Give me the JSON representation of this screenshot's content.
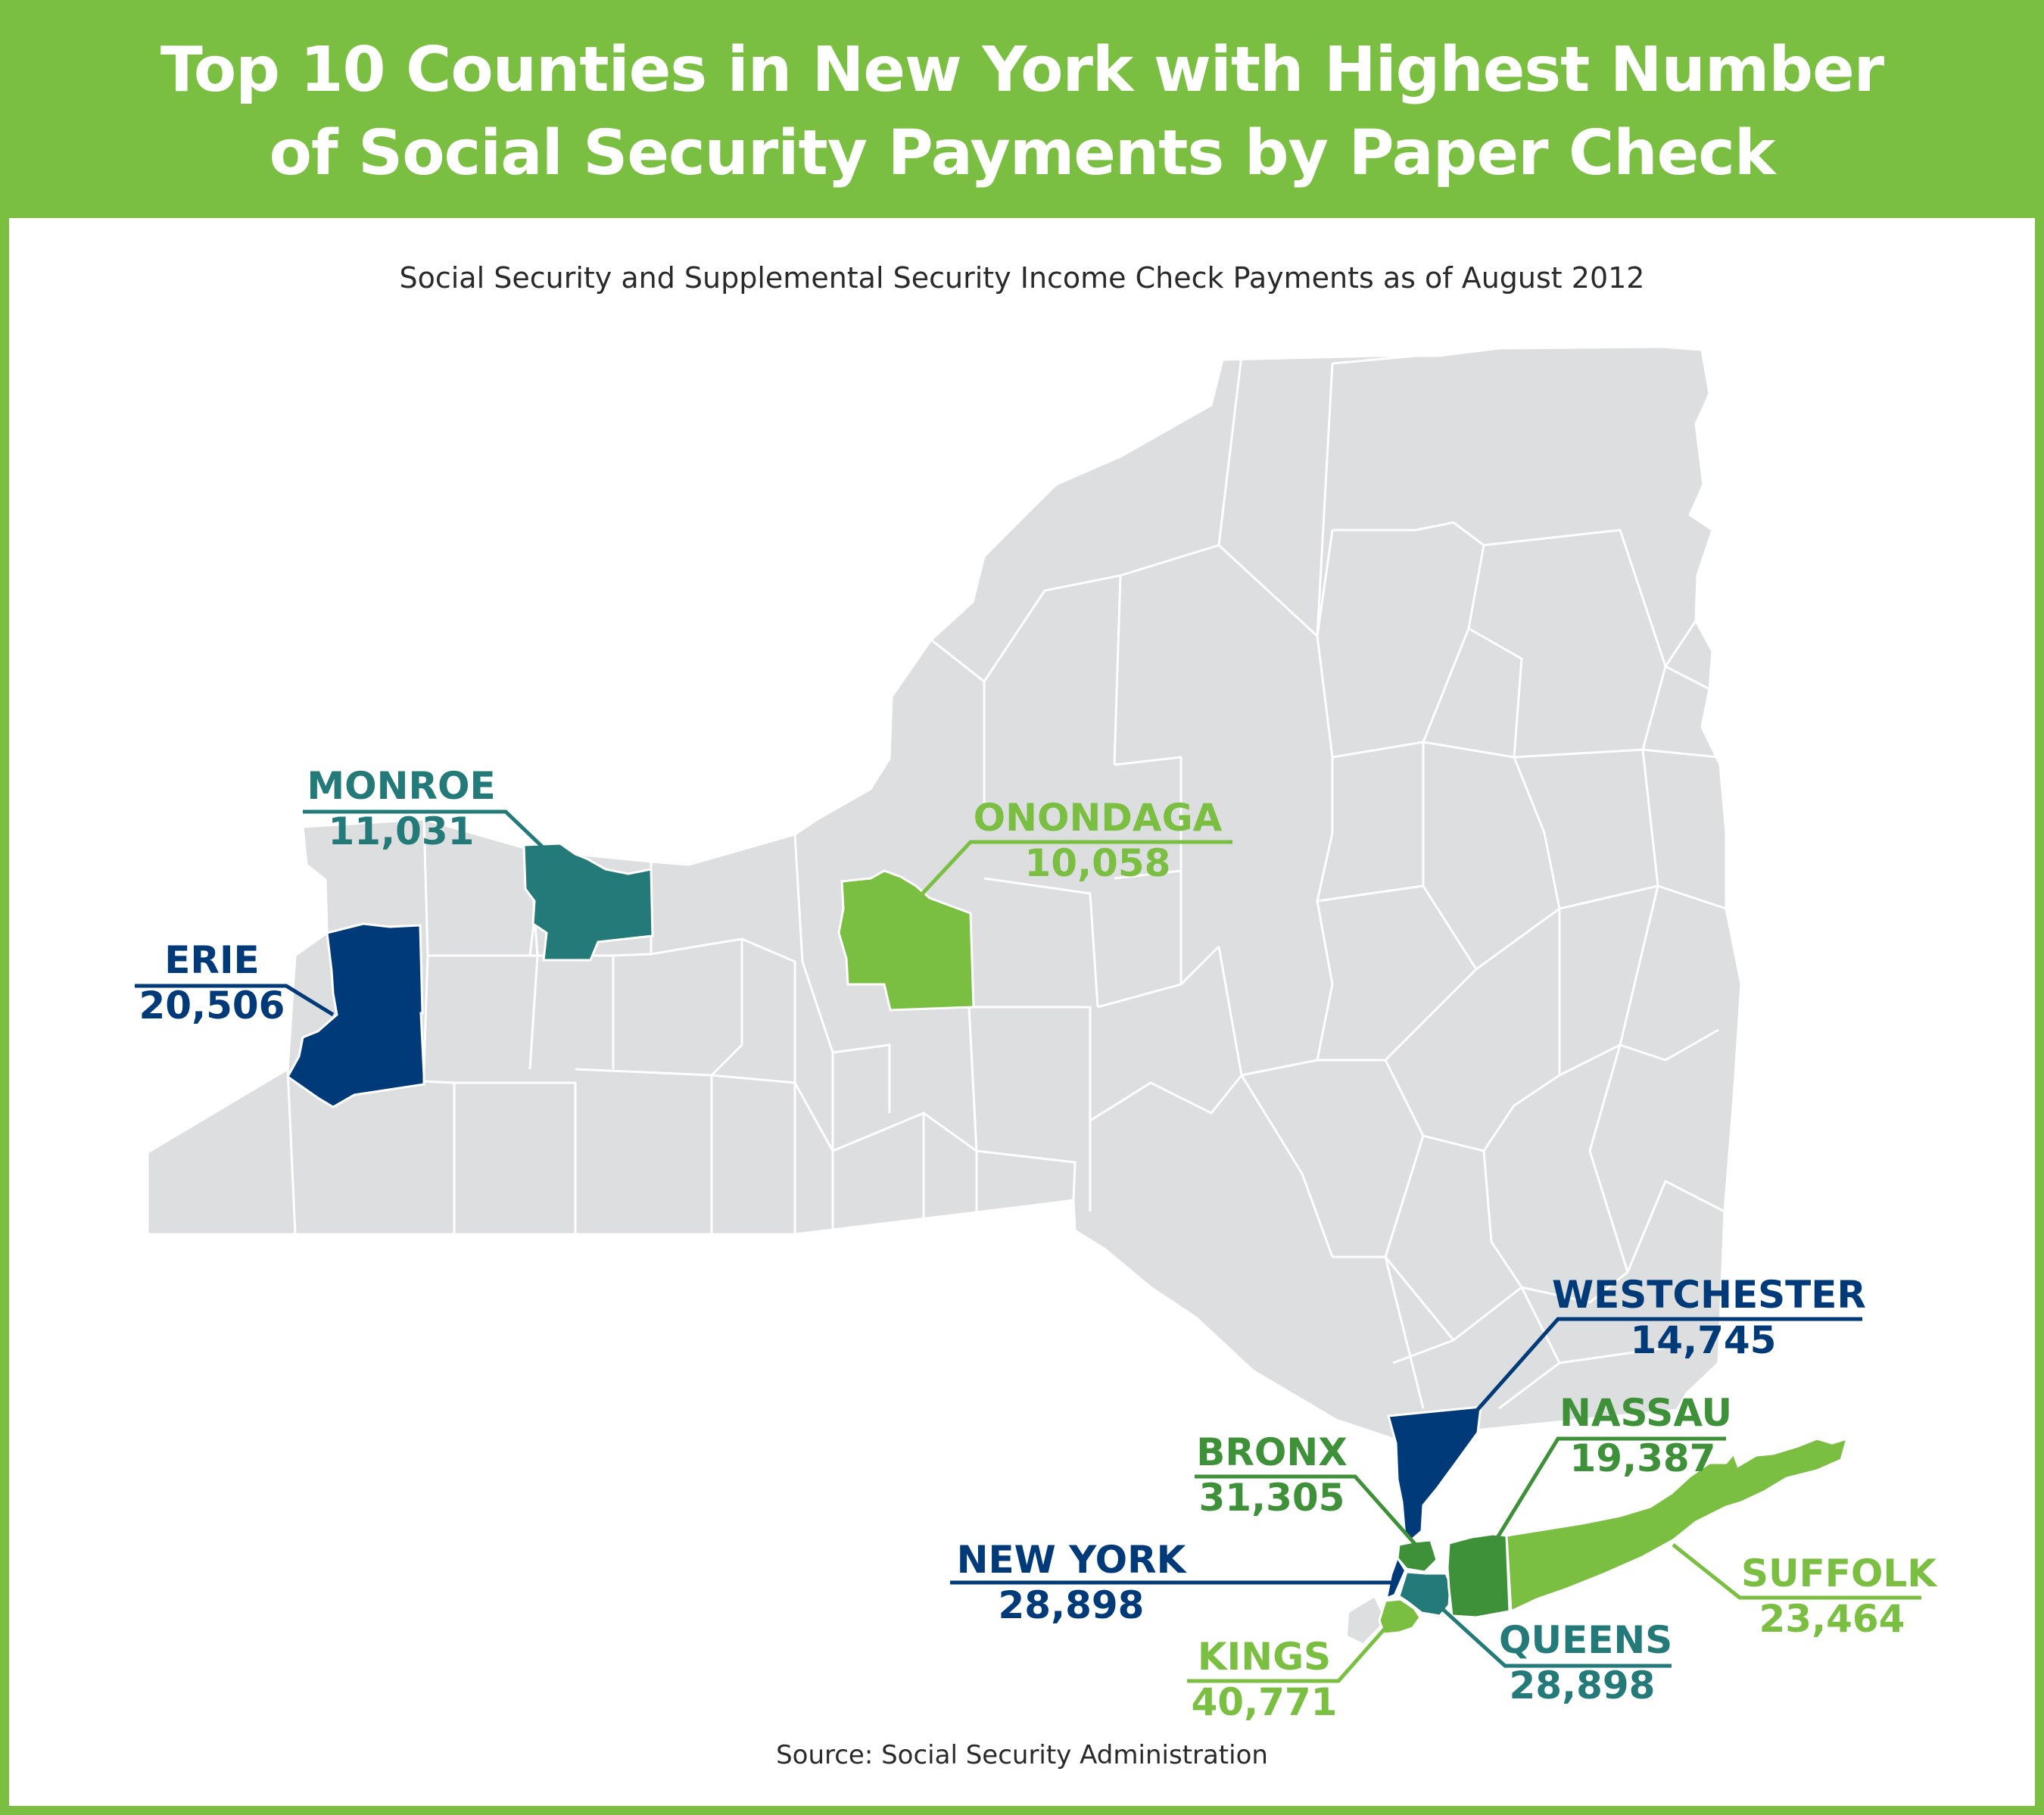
{
  "title": "Top 10 Counties in New York with Highest Number of Social Security Payments by Paper Check",
  "title_lines": [
    "Top 10 Counties in New York with Highest Number",
    "of Social Security Payments by Paper Check"
  ],
  "subtitle": "Social Security and Supplemental Security Income Check Payments as of August 2012",
  "source": "Source: Social Security Administration",
  "colors": {
    "frame": "#7bbf42",
    "state_fill": "#dcdedf",
    "county_border": "#ffffff",
    "navy": "#003a78",
    "teal": "#237a78",
    "light_green": "#7bbf42",
    "dark_green": "#3e9139"
  },
  "counties": [
    {
      "name": "KINGS",
      "value": "40,771",
      "color": "light_green"
    },
    {
      "name": "BRONX",
      "value": "31,305",
      "color": "dark_green"
    },
    {
      "name": "NEW YORK",
      "value": "28,898",
      "color": "navy"
    },
    {
      "name": "QUEENS",
      "value": "28,898",
      "color": "teal"
    },
    {
      "name": "SUFFOLK",
      "value": "23,464",
      "color": "light_green"
    },
    {
      "name": "ERIE",
      "value": "20,506",
      "color": "navy"
    },
    {
      "name": "NASSAU",
      "value": "19,387",
      "color": "dark_green"
    },
    {
      "name": "WESTCHESTER",
      "value": "14,745",
      "color": "navy"
    },
    {
      "name": "MONROE",
      "value": "11,031",
      "color": "teal"
    },
    {
      "name": "ONONDAGA",
      "value": "10,058",
      "color": "light_green"
    }
  ]
}
